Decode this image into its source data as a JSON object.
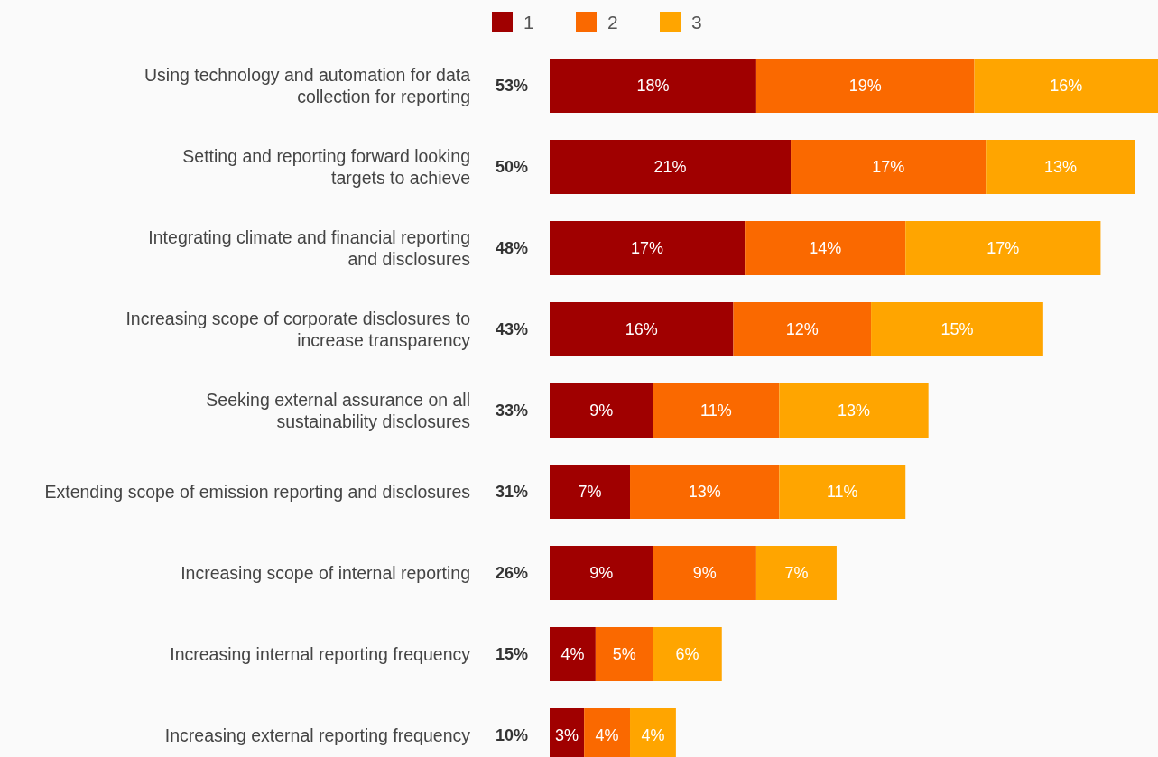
{
  "chart_data": {
    "type": "bar",
    "orientation": "horizontal",
    "stacked": true,
    "legend": "top",
    "tick_labels": "y",
    "xlim": [
      0,
      53
    ],
    "categories": [
      "Using technology and automation for data collection for reporting",
      "Setting and reporting forward looking targets to achieve",
      "Integrating climate and financial reporting and disclosures",
      "Increasing scope of corporate disclosures to increase transparency",
      "Seeking external assurance on all sustainability disclosures",
      "Extending scope of emission reporting and disclosures",
      "Increasing scope of internal reporting",
      "Increasing internal reporting frequency",
      "Increasing external reporting frequency"
    ],
    "series": [
      {
        "name": "1",
        "color": "#a00000",
        "values": [
          18,
          21,
          17,
          16,
          9,
          7,
          9,
          4,
          3
        ],
        "value_labels": [
          "18%",
          "21%",
          "17%",
          "16%",
          "9%",
          "7%",
          "9%",
          "4%",
          "3%"
        ]
      },
      {
        "name": "2",
        "color": "#fa6900",
        "values": [
          19,
          17,
          14,
          12,
          11,
          13,
          9,
          5,
          4
        ],
        "value_labels": [
          "19%",
          "17%",
          "14%",
          "12%",
          "11%",
          "13%",
          "9%",
          "5%",
          "4%"
        ]
      },
      {
        "name": "3",
        "color": "#ffa500",
        "values": [
          16,
          13,
          17,
          15,
          13,
          11,
          7,
          6,
          4
        ],
        "value_labels": [
          "16%",
          "13%",
          "17%",
          "15%",
          "13%",
          "11%",
          "7%",
          "6%",
          "4%"
        ]
      }
    ],
    "totals": [
      "53%",
      "50%",
      "48%",
      "43%",
      "33%",
      "31%",
      "26%",
      "15%",
      "10%"
    ]
  }
}
